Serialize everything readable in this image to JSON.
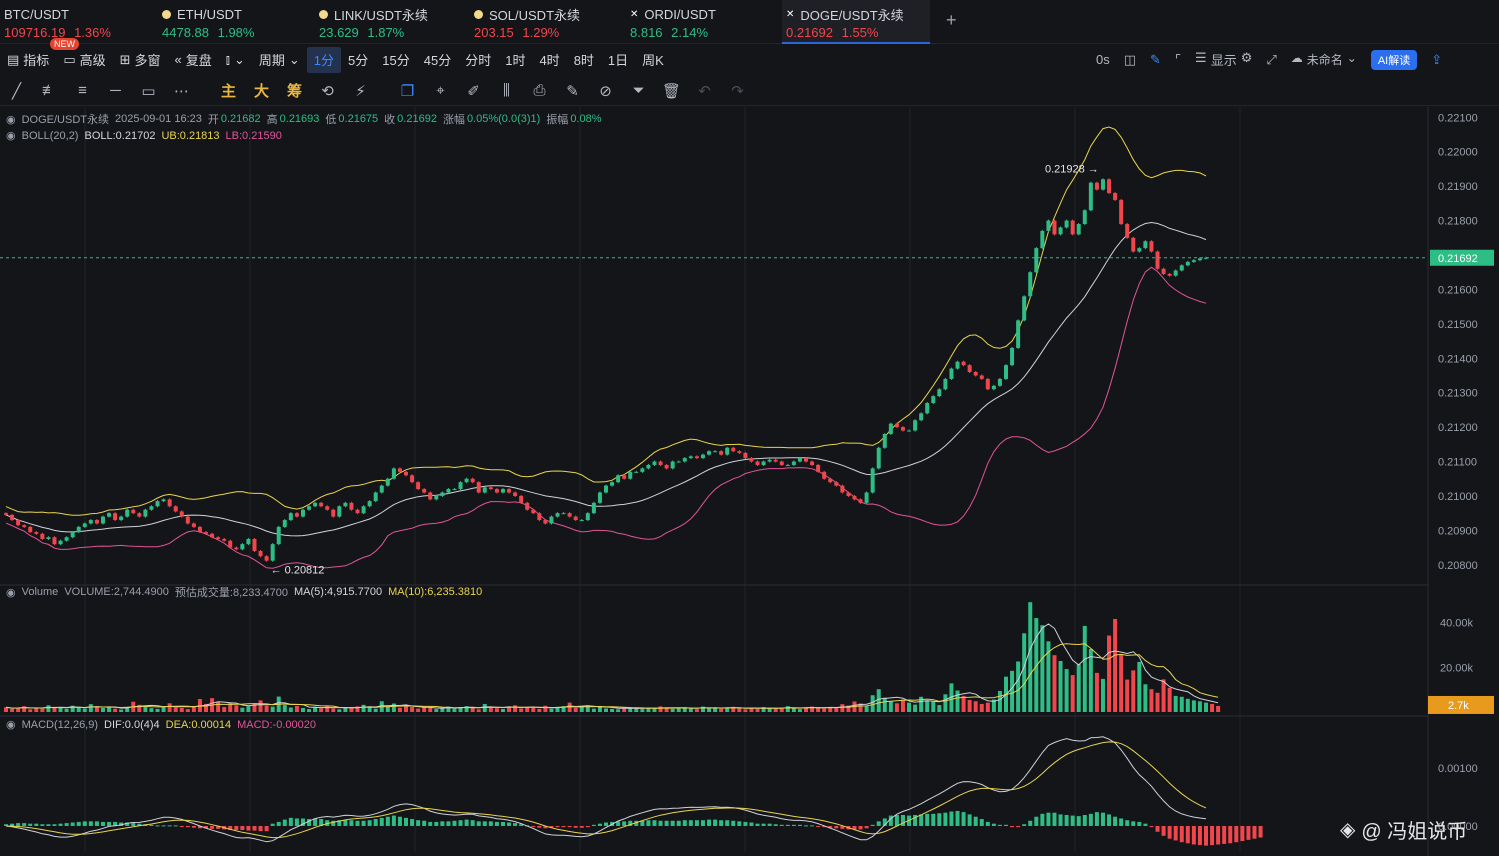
{
  "tabs": [
    {
      "name": "BTC/USDT",
      "price": "109716.19",
      "change": "1.36%",
      "dir": "dn",
      "icon": "btc-coin-icon",
      "x": 0
    },
    {
      "name": "ETH/USDT",
      "price": "4478.88",
      "change": "1.98%",
      "dir": "up",
      "icon": "eth-coin-icon",
      "x": 158
    },
    {
      "name": "LINK/USDT永续",
      "price": "23.629",
      "change": "1.87%",
      "dir": "up",
      "icon": "link-coin-icon",
      "x": 315
    },
    {
      "name": "SOL/USDT永续",
      "price": "203.15",
      "change": "1.29%",
      "dir": "dn",
      "icon": "sol-coin-icon",
      "x": 470
    },
    {
      "name": "ORDI/USDT",
      "price": "8.816",
      "change": "2.14%",
      "dir": "up",
      "icon": "ordi-coin-icon",
      "x": 626
    },
    {
      "name": "DOGE/USDT永续",
      "price": "0.21692",
      "change": "1.55%",
      "dir": "dn",
      "icon": "doge-coin-icon",
      "x": 782,
      "active": true
    }
  ],
  "new_badge": "NEW",
  "add_tab": "+",
  "toolbar": {
    "indicator": "指标",
    "advanced": "高级",
    "multi": "多窗",
    "replay": "复盘",
    "period": "周期",
    "intervals": [
      "1分",
      "5分",
      "15分",
      "45分",
      "分时",
      "1时",
      "4时",
      "8时",
      "1日",
      "周K"
    ],
    "selected_interval": "1分",
    "countdown": "0s",
    "display": "显示",
    "unnamed": "未命名",
    "ai": "AI解读"
  },
  "draw_tools": {
    "zhu": "主",
    "da": "大",
    "chou": "筹"
  },
  "legend": {
    "symbol": "DOGE/USDT永续",
    "time": "2025-09-01 16:23",
    "open_l": "开",
    "open": "0.21682",
    "high_l": "高",
    "high": "0.21693",
    "low_l": "低",
    "low": "0.21675",
    "close_l": "收",
    "close": "0.21692",
    "chg_l": "涨幅",
    "chg": "0.05%(0.0(3)1)",
    "amp_l": "振幅",
    "amp": "0.08%",
    "boll_name": "BOLL(20,2)",
    "boll": "BOLL:0.21702",
    "ub": "UB:0.21813",
    "lb": "LB:0.21590"
  },
  "vol_legend": {
    "name": "Volume",
    "vol": "VOLUME:2,744.4900",
    "est": "预估成交量:8,233.4700",
    "ma5": "MA(5):4,915.7700",
    "ma10": "MA(10):6,235.3810"
  },
  "macd_legend": {
    "name": "MACD(12,26,9)",
    "dif": "DIF:0.0(4)4",
    "dea": "DEA:0.00014",
    "macd": "MACD:-0.00020"
  },
  "price_axis": [
    "0.22100",
    "0.22000",
    "0.21900",
    "0.21800",
    "0.21600",
    "0.21500",
    "0.21400",
    "0.21300",
    "0.21200",
    "0.21100",
    "0.21000",
    "0.20900",
    "0.20800"
  ],
  "current_price": "0.21692",
  "high_mark": "0.21928 →",
  "low_mark": "← 0.20812",
  "vol_axis": [
    "40.00k",
    "20.00k"
  ],
  "vol_current": "2.7k",
  "macd_axis": [
    "0.00100",
    "0.00000"
  ],
  "watermark": "@ 冯姐说币",
  "colors": {
    "up": "#2dbd85",
    "down": "#f0464c",
    "ub": "#e8d44d",
    "mid": "#cfd3da",
    "lb": "#e0559a",
    "accent": "#2a66d9"
  },
  "chart_data": {
    "type": "candlestick",
    "closes": [
      0.20945,
      0.2093,
      0.20915,
      0.2091,
      0.20895,
      0.2089,
      0.20875,
      0.2088,
      0.2086,
      0.2087,
      0.2088,
      0.20895,
      0.2091,
      0.2092,
      0.2093,
      0.2092,
      0.2094,
      0.2095,
      0.2093,
      0.2094,
      0.2096,
      0.2095,
      0.2094,
      0.2096,
      0.2097,
      0.20985,
      0.2099,
      0.2097,
      0.20955,
      0.2094,
      0.2092,
      0.2091,
      0.20895,
      0.2089,
      0.2088,
      0.20875,
      0.2087,
      0.2085,
      0.20845,
      0.2086,
      0.20875,
      0.2084,
      0.20825,
      0.20812,
      0.2086,
      0.2091,
      0.2093,
      0.2095,
      0.2094,
      0.2096,
      0.2097,
      0.2098,
      0.2097,
      0.2096,
      0.2094,
      0.2097,
      0.2098,
      0.2096,
      0.2095,
      0.2097,
      0.20985,
      0.2101,
      0.2103,
      0.2105,
      0.2108,
      0.2107,
      0.2106,
      0.2104,
      0.2102,
      0.2101,
      0.2099,
      0.21,
      0.2101,
      0.2102,
      0.2102,
      0.2104,
      0.2105,
      0.2104,
      0.2101,
      0.21025,
      0.2102,
      0.2101,
      0.2102,
      0.2101,
      0.21,
      0.2098,
      0.2096,
      0.2095,
      0.2093,
      0.2092,
      0.2094,
      0.2095,
      0.2095,
      0.2094,
      0.2093,
      0.2093,
      0.2095,
      0.2098,
      0.2101,
      0.2103,
      0.2104,
      0.2106,
      0.2105,
      0.2107,
      0.2107,
      0.2108,
      0.2109,
      0.211,
      0.2109,
      0.2108,
      0.211,
      0.211,
      0.2111,
      0.21115,
      0.2111,
      0.2112,
      0.2113,
      0.2113,
      0.2112,
      0.2114,
      0.2113,
      0.21125,
      0.2111,
      0.211,
      0.2109,
      0.211,
      0.21105,
      0.211,
      0.2109,
      0.2109,
      0.211,
      0.2111,
      0.211,
      0.2109,
      0.2107,
      0.2105,
      0.2104,
      0.2103,
      0.2101,
      0.21,
      0.2099,
      0.2098,
      0.2101,
      0.2108,
      0.2114,
      0.2118,
      0.2121,
      0.212,
      0.2119,
      0.2119,
      0.2122,
      0.2124,
      0.2127,
      0.2129,
      0.2131,
      0.2134,
      0.2137,
      0.2139,
      0.2138,
      0.2136,
      0.2135,
      0.2134,
      0.2131,
      0.2132,
      0.2134,
      0.2138,
      0.2143,
      0.2151,
      0.2158,
      0.2165,
      0.2172,
      0.2177,
      0.218,
      0.2176,
      0.2178,
      0.218,
      0.2176,
      0.2179,
      0.2183,
      0.2191,
      0.2189,
      0.2192,
      0.2188,
      0.2186,
      0.2179,
      0.2175,
      0.2171,
      0.2172,
      0.2174,
      0.2171,
      0.2166,
      0.21645,
      0.2164,
      0.21655,
      0.2167,
      0.2168,
      0.21685,
      0.2169,
      0.21692
    ],
    "price_range": [
      0.2075,
      0.2213
    ],
    "boll_period": 20,
    "volumes": [
      2.1,
      1.4,
      1.8,
      2.6,
      1.2,
      2.0,
      1.5,
      3.0,
      2.3,
      1.9,
      1.4,
      2.8,
      2.2,
      1.6,
      3.5,
      2.0,
      1.8,
      2.4,
      1.5,
      1.1,
      2.3,
      4.6,
      3.2,
      2.9,
      1.7,
      1.4,
      2.6,
      3.9,
      2.1,
      1.8,
      1.3,
      2.7,
      5.8,
      3.6,
      6.2,
      4.4,
      2.2,
      4.1,
      3.0,
      1.9,
      2.6,
      3.8,
      5.2,
      2.8,
      2.4,
      6.9,
      3.1,
      2.0,
      2.7,
      1.8,
      1.3,
      2.4,
      1.7,
      2.9,
      1.6,
      1.2,
      2.2,
      1.9,
      2.5,
      3.2,
      2.0,
      1.5,
      4.8,
      2.6,
      3.8,
      1.9,
      2.7,
      2.2,
      1.5,
      2.1,
      1.8,
      1.3,
      1.9,
      2.4,
      1.5,
      2.2,
      2.6,
      1.8,
      1.2,
      3.6,
      2.1,
      1.7,
      1.4,
      2.5,
      3.0,
      1.6,
      2.1,
      1.9,
      1.4,
      2.8,
      1.5,
      2.3,
      2.6,
      4.2,
      1.8,
      2.4,
      3.0,
      1.5,
      2.7,
      1.6,
      1.4,
      1.2,
      1.8,
      2.2,
      1.5,
      1.3,
      2.0,
      1.7,
      2.5,
      1.9,
      1.4,
      1.8,
      2.1,
      1.6,
      1.3,
      2.4,
      1.7,
      2.0,
      1.5,
      1.9,
      2.3,
      1.6,
      1.2,
      1.8,
      1.4,
      2.2,
      1.7,
      1.5,
      1.9,
      2.6,
      1.8,
      1.3,
      2.1,
      2.4,
      2.0,
      1.6,
      2.2,
      1.8,
      3.5,
      2.9,
      4.7,
      3.8,
      2.6,
      7.5,
      10.2,
      6.4,
      4.8,
      3.9,
      5.6,
      4.2,
      3.3,
      6.8,
      5.2,
      4.6,
      3.1,
      7.9,
      12.8,
      9.6,
      7.2,
      5.4,
      4.8,
      3.6,
      4.2,
      5.6,
      9.4,
      15.8,
      18.4,
      22.6,
      35.2,
      49.1,
      42.0,
      38.8,
      31.6,
      25.4,
      22.8,
      19.2,
      16.5,
      21.4,
      38.5,
      28.2,
      17.5,
      14.8,
      34.2,
      41.6,
      25.8,
      14.5,
      18.6,
      22.4,
      12.4,
      10.2,
      8.6,
      14.6,
      10.8,
      7.2,
      6.8,
      5.9,
      5.2,
      4.8,
      4.2,
      3.6,
      2.7
    ],
    "vol_range": [
      0,
      55
    ],
    "macd_hist": [
      3e-05,
      4e-05,
      5e-05,
      5e-05,
      4e-05,
      4e-05,
      3e-05,
      3e-05,
      3e-05,
      4e-05,
      5e-05,
      6e-05,
      7e-05,
      8e-05,
      8e-05,
      8e-05,
      7e-05,
      7e-05,
      7e-05,
      6e-05,
      6e-05,
      5e-05,
      4e-05,
      3e-05,
      2e-05,
      1e-05,
      1e-05,
      1e-05,
      1e-05,
      -1e-05,
      -2e-05,
      -3e-05,
      -4e-05,
      -4e-05,
      -5e-05,
      -5e-05,
      -6e-05,
      -7e-05,
      -7e-05,
      -7e-05,
      -8e-05,
      -8e-05,
      -9e-05,
      -9e-05,
      4e-05,
      7e-05,
      0.00011,
      0.00014,
      0.00013,
      0.00013,
      0.00012,
      0.00013,
      0.00012,
      0.0001,
      9e-05,
      0.0001,
      0.00011,
      0.0001,
      9e-05,
      9e-05,
      0.0001,
      0.00012,
      0.00014,
      0.00016,
      0.00018,
      0.00016,
      0.00014,
      0.00012,
      0.0001,
      9e-05,
      7e-05,
      7e-05,
      8e-05,
      8e-05,
      9e-05,
      0.0001,
      0.00011,
      0.0001,
      8e-05,
      8e-05,
      8e-05,
      7e-05,
      7e-05,
      6e-05,
      5e-05,
      3e-05,
      1e-05,
      -1e-05,
      -3e-05,
      -4e-05,
      -3e-05,
      -2e-05,
      -2e-05,
      -2e-05,
      -3e-05,
      -3e-05,
      -2e-05,
      2e-05,
      4e-05,
      6e-05,
      7e-05,
      8e-05,
      8e-05,
      9e-05,
      9e-05,
      9e-05,
      0.0001,
      0.0001,
      9e-05,
      9e-05,
      9e-05,
      9e-05,
      0.0001,
      0.0001,
      0.0001,
      0.0001,
      0.00011,
      0.00011,
      0.0001,
      0.0001,
      9e-05,
      8e-05,
      7e-05,
      6e-05,
      4e-05,
      4e-05,
      4e-05,
      3e-05,
      2e-05,
      2e-05,
      2e-05,
      2e-05,
      1e-05,
      1e-05,
      -1e-05,
      -2e-05,
      -3e-05,
      -4e-05,
      -5e-05,
      -6e-05,
      -6e-05,
      -6e-05,
      -4e-05,
      2e-05,
      8e-05,
      0.00013,
      0.00018,
      0.00019,
      0.00019,
      0.00018,
      0.00019,
      0.0002,
      0.00021,
      0.00021,
      0.00022,
      0.00023,
      0.00025,
      0.00026,
      0.00024,
      0.0002,
      0.00016,
      0.00012,
      7e-05,
      4e-05,
      2e-05,
      2e-05,
      -2e-05,
      -2e-05,
      3e-05,
      9e-05,
      0.00016,
      0.00021,
      0.00023,
      0.00023,
      0.0002,
      0.00019,
      0.00018,
      0.00017,
      0.00019,
      0.00021,
      0.00024,
      0.00023,
      0.0002,
      0.00016,
      0.00013,
      0.0001,
      8e-05,
      7e-05,
      4e-05,
      -1e-05,
      -0.0001,
      -0.00017,
      -0.00022,
      -0.00025,
      -0.00028,
      -0.0003,
      -0.00032,
      -0.00033,
      -0.00034,
      -0.00033,
      -0.00032,
      -0.00031,
      -0.0003,
      -0.00028,
      -0.00026,
      -0.00024,
      -0.00022,
      -0.0002
    ],
    "macd_range": [
      -0.00045,
      0.00185
    ]
  }
}
